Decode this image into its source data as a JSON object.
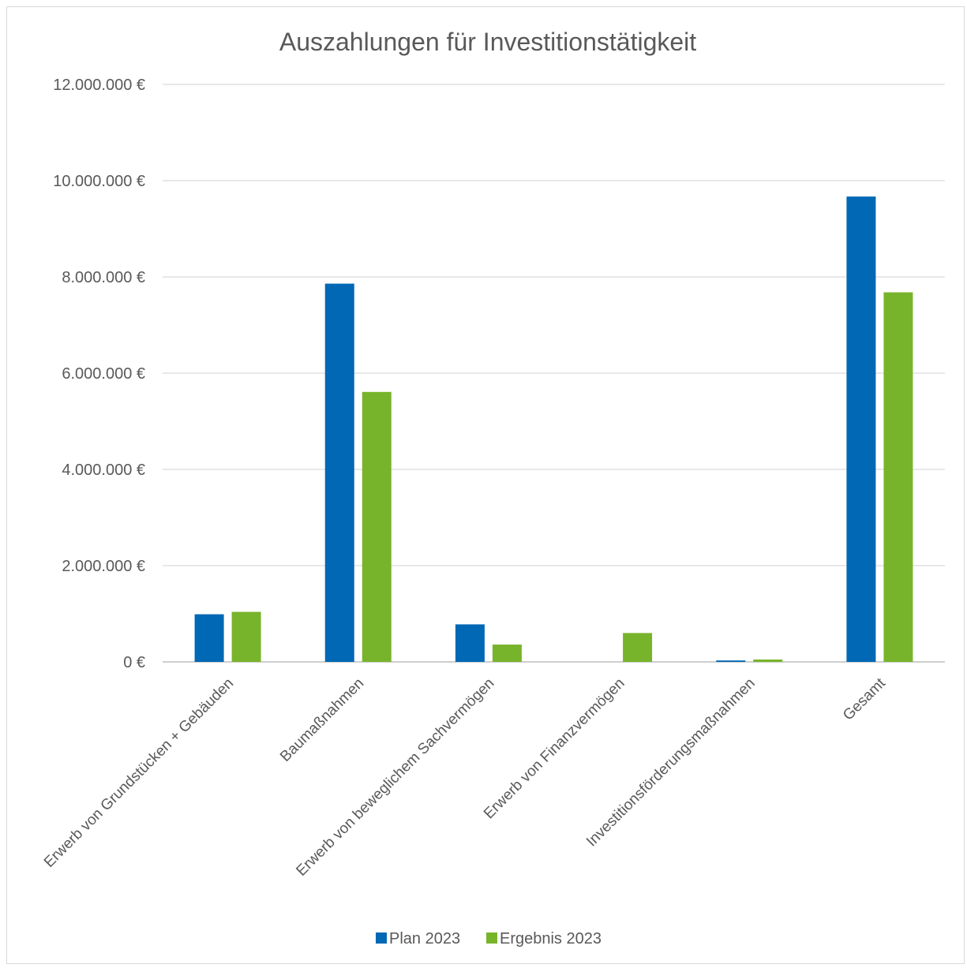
{
  "chart_data": {
    "type": "bar",
    "title": "Auszahlungen für Investitionstätigkeit",
    "categories": [
      "Erwerb von Grundstücken + Gebäuden",
      "Baumaßnahmen",
      "Erwerb von beweglichem Sachvermögen",
      "Erwerb von Finanzvermögen",
      "Investitionsförderungsmaßnahmen",
      "Gesamt"
    ],
    "series": [
      {
        "name": "Plan 2023",
        "color": "#0068b4",
        "values": [
          990000,
          7860000,
          780000,
          0,
          30000,
          9670000
        ]
      },
      {
        "name": "Ergebnis 2023",
        "color": "#78b42b",
        "values": [
          1040000,
          5610000,
          360000,
          600000,
          50000,
          7680000
        ]
      }
    ],
    "ylim": [
      0,
      12000000
    ],
    "yticks": [
      0,
      2000000,
      4000000,
      6000000,
      8000000,
      10000000,
      12000000
    ],
    "ytick_labels": [
      "0 €",
      "2.000.000 €",
      "4.000.000 €",
      "6.000.000 €",
      "8.000.000 €",
      "10.000.000 €",
      "12.000.000 €"
    ],
    "xlabel": "",
    "ylabel": "",
    "grid": true,
    "legend_position": "bottom"
  }
}
